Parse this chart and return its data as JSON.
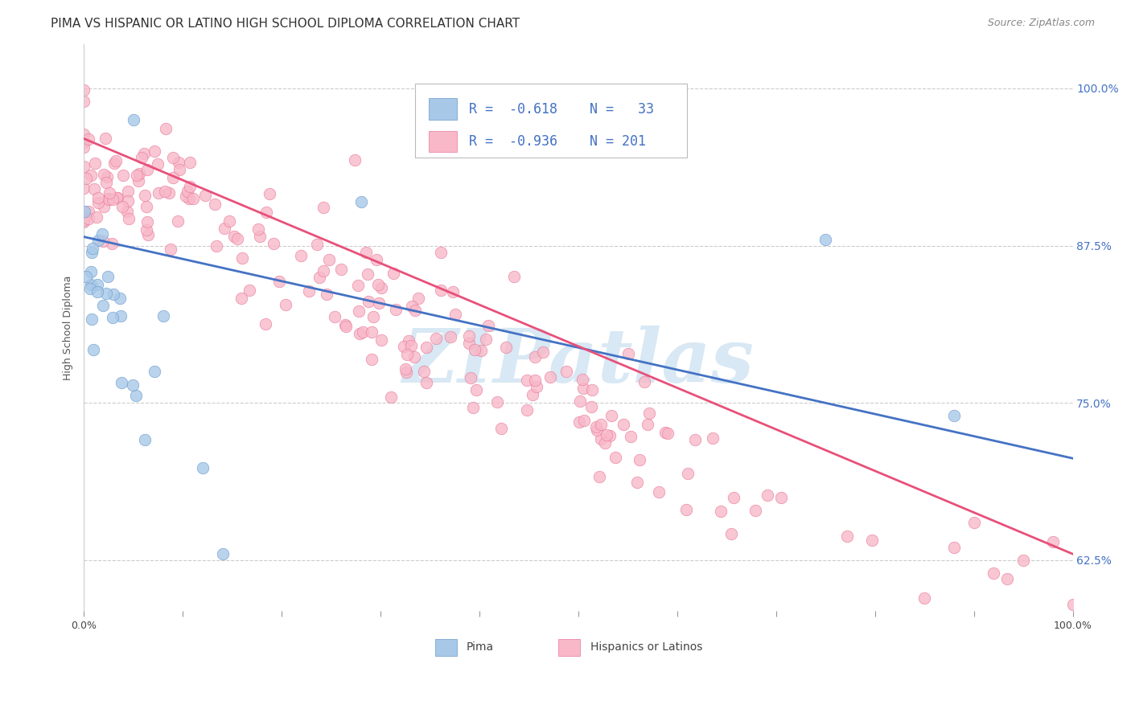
{
  "title": "PIMA VS HISPANIC OR LATINO HIGH SCHOOL DIPLOMA CORRELATION CHART",
  "source": "Source: ZipAtlas.com",
  "ylabel": "High School Diploma",
  "x_min": 0.0,
  "x_max": 1.0,
  "y_min": 0.585,
  "y_max": 1.035,
  "x_ticks": [
    0.0,
    0.1,
    0.2,
    0.3,
    0.4,
    0.5,
    0.6,
    0.7,
    0.8,
    0.9,
    1.0
  ],
  "y_ticks": [
    0.625,
    0.75,
    0.875,
    1.0
  ],
  "y_ticklabels": [
    "62.5%",
    "75.0%",
    "87.5%",
    "100.0%"
  ],
  "grid_color": "#cccccc",
  "background_color": "#ffffff",
  "pima_color": "#a8c8e8",
  "pima_edge_color": "#6699cc",
  "hispanic_color": "#f8b8c8",
  "hispanic_edge_color": "#e87898",
  "pima_line_color": "#4472c4",
  "hispanic_line_color": "#e8507a",
  "pima_R": -0.618,
  "pima_N": 33,
  "hispanic_R": -0.936,
  "hispanic_N": 201,
  "legend_text_color": "#4472c4",
  "watermark_color": "#d8e8f4",
  "title_fontsize": 11,
  "axis_label_fontsize": 9,
  "tick_fontsize": 9,
  "source_fontsize": 9,
  "pima_line_y0": 0.882,
  "pima_line_y1": 0.706,
  "hispanic_line_y0": 0.96,
  "hispanic_line_y1": 0.63
}
